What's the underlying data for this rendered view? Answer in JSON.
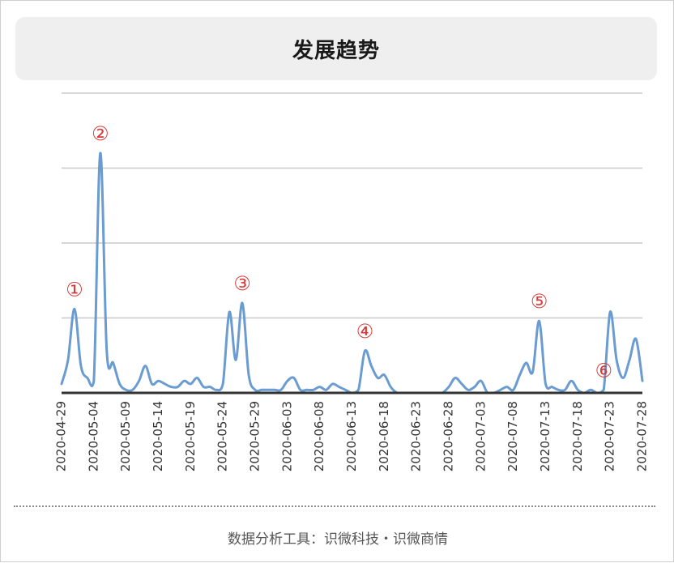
{
  "title": "发展趋势",
  "footer": "数据分析工具：识微科技・识微商情",
  "colors": {
    "line": "#6a9bd1",
    "marker": "#d43c3c",
    "grid": "#c8c8c8",
    "axis": "#333333",
    "title_bg": "#efefef"
  },
  "chart_data": {
    "type": "line",
    "title": "发展趋势",
    "grid": true,
    "y_axis_labels_shown": false,
    "ylim": [
      0,
      100
    ],
    "x_tick_labels": [
      "2020-04-29",
      "2020-05-04",
      "2020-05-09",
      "2020-05-14",
      "2020-05-19",
      "2020-05-24",
      "2020-05-29",
      "2020-06-03",
      "2020-06-08",
      "2020-06-13",
      "2020-06-18",
      "2020-06-23",
      "2020-06-28",
      "2020-07-03",
      "2020-07-08",
      "2020-07-13",
      "2020-07-18",
      "2020-07-23",
      "2020-07-28"
    ],
    "x": [
      "2020-04-29",
      "2020-04-30",
      "2020-05-01",
      "2020-05-02",
      "2020-05-03",
      "2020-05-04",
      "2020-05-05",
      "2020-05-06",
      "2020-05-07",
      "2020-05-08",
      "2020-05-09",
      "2020-05-10",
      "2020-05-11",
      "2020-05-12",
      "2020-05-13",
      "2020-05-14",
      "2020-05-15",
      "2020-05-16",
      "2020-05-17",
      "2020-05-18",
      "2020-05-19",
      "2020-05-20",
      "2020-05-21",
      "2020-05-22",
      "2020-05-23",
      "2020-05-24",
      "2020-05-25",
      "2020-05-26",
      "2020-05-27",
      "2020-05-28",
      "2020-05-29",
      "2020-05-30",
      "2020-05-31",
      "2020-06-01",
      "2020-06-02",
      "2020-06-03",
      "2020-06-04",
      "2020-06-05",
      "2020-06-06",
      "2020-06-07",
      "2020-06-08",
      "2020-06-09",
      "2020-06-10",
      "2020-06-11",
      "2020-06-12",
      "2020-06-13",
      "2020-06-14",
      "2020-06-15",
      "2020-06-16",
      "2020-06-17",
      "2020-06-18",
      "2020-06-19",
      "2020-06-20",
      "2020-06-21",
      "2020-06-22",
      "2020-06-23",
      "2020-06-24",
      "2020-06-25",
      "2020-06-26",
      "2020-06-27",
      "2020-06-28",
      "2020-06-29",
      "2020-06-30",
      "2020-07-01",
      "2020-07-02",
      "2020-07-03",
      "2020-07-04",
      "2020-07-05",
      "2020-07-06",
      "2020-07-07",
      "2020-07-08",
      "2020-07-09",
      "2020-07-10",
      "2020-07-11",
      "2020-07-12",
      "2020-07-13",
      "2020-07-14",
      "2020-07-15",
      "2020-07-16",
      "2020-07-17",
      "2020-07-18",
      "2020-07-19",
      "2020-07-20",
      "2020-07-21",
      "2020-07-22",
      "2020-07-23",
      "2020-07-24",
      "2020-07-25",
      "2020-07-26",
      "2020-07-27",
      "2020-07-28"
    ],
    "series": [
      {
        "values": [
          3,
          11,
          28,
          9,
          5,
          4,
          80,
          14,
          10,
          3,
          1,
          1,
          4,
          9,
          3,
          4,
          3,
          2,
          2,
          4,
          3,
          5,
          2,
          2,
          1,
          3,
          27,
          11,
          30,
          6,
          1,
          1,
          1,
          1,
          1,
          4,
          5,
          1,
          1,
          1,
          2,
          1,
          3,
          2,
          1,
          0,
          1,
          14,
          9,
          5,
          6,
          2,
          0,
          0,
          0,
          0,
          0,
          0,
          0,
          0,
          2,
          5,
          3,
          1,
          2,
          4,
          0,
          0,
          1,
          2,
          1,
          6,
          10,
          7,
          24,
          3,
          2,
          1,
          1,
          4,
          1,
          0,
          1,
          0,
          1,
          27,
          11,
          5,
          11,
          18,
          4
        ]
      }
    ],
    "annotations": [
      {
        "label": "①",
        "x": "2020-05-01"
      },
      {
        "label": "②",
        "x": "2020-05-05"
      },
      {
        "label": "③",
        "x": "2020-05-27"
      },
      {
        "label": "④",
        "x": "2020-06-15"
      },
      {
        "label": "⑤",
        "x": "2020-07-12"
      },
      {
        "label": "⑥",
        "x": "2020-07-22"
      }
    ]
  }
}
